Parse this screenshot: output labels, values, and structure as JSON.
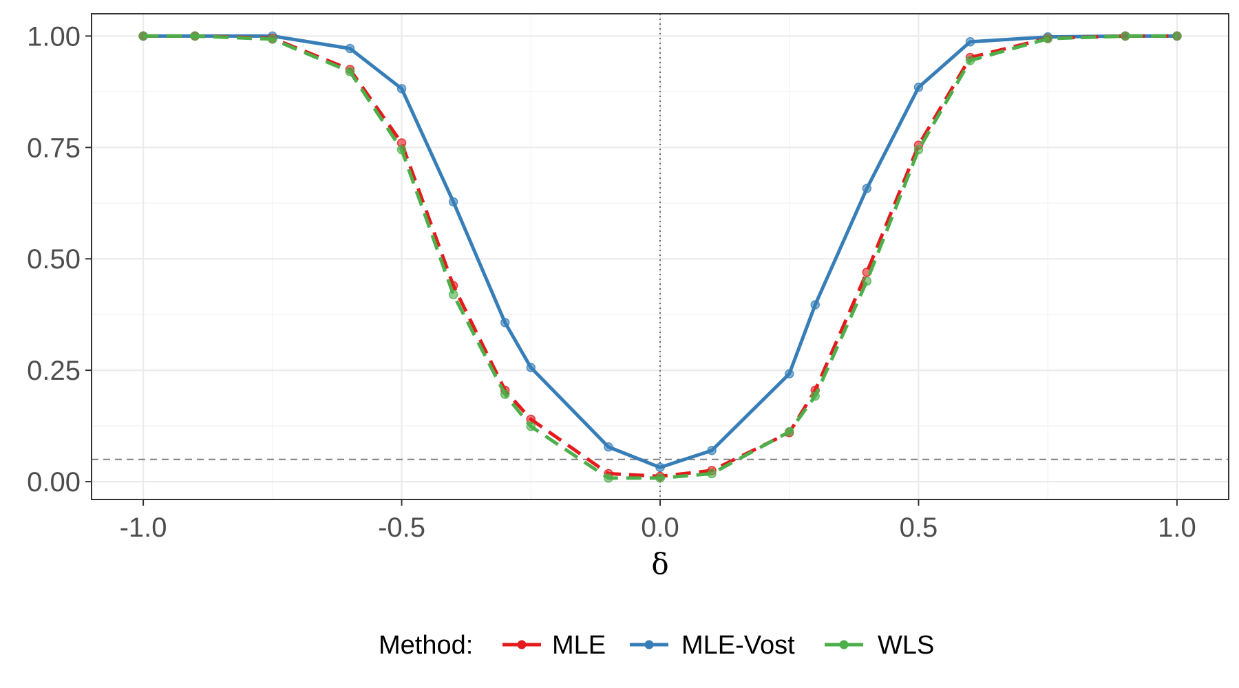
{
  "chart_data": {
    "type": "line",
    "title": "",
    "xlabel": "δ",
    "ylabel": "",
    "xlim": [
      -1.1,
      1.1
    ],
    "ylim": [
      -0.04,
      1.05
    ],
    "x_ticks": [
      -1.0,
      -0.5,
      0.0,
      0.5,
      1.0
    ],
    "x_tick_labels": [
      "-1.0",
      "-0.5",
      "0.0",
      "0.5",
      "1.0"
    ],
    "y_ticks": [
      0.0,
      0.25,
      0.5,
      0.75,
      1.0
    ],
    "y_tick_labels": [
      "0.00",
      "0.25",
      "0.50",
      "0.75",
      "1.00"
    ],
    "grid": true,
    "reference_lines": {
      "horizontal": 0.05,
      "vertical": 0.0
    },
    "legend": {
      "title": "Method:",
      "position": "bottom"
    },
    "x": [
      -1.0,
      -0.9,
      -0.75,
      -0.6,
      -0.5,
      -0.4,
      -0.3,
      -0.25,
      -0.1,
      0.0,
      0.1,
      0.25,
      0.3,
      0.4,
      0.5,
      0.6,
      0.75,
      0.9,
      1.0
    ],
    "series": [
      {
        "name": "MLE",
        "color": "#E41A1C",
        "dash": "dashed",
        "values": [
          1.0,
          1.0,
          0.995,
          0.925,
          0.76,
          0.44,
          0.205,
          0.14,
          0.018,
          0.012,
          0.025,
          0.11,
          0.205,
          0.47,
          0.755,
          0.952,
          0.995,
          1.0,
          1.0
        ]
      },
      {
        "name": "MLE-Vost",
        "color": "#377EB8",
        "dash": "solid",
        "values": [
          1.0,
          1.0,
          1.0,
          0.972,
          0.882,
          0.628,
          0.357,
          0.256,
          0.078,
          0.032,
          0.07,
          0.242,
          0.397,
          0.658,
          0.885,
          0.987,
          0.998,
          1.0,
          1.0
        ]
      },
      {
        "name": "WLS",
        "color": "#4DAF4A",
        "dash": "dashed",
        "values": [
          1.0,
          1.0,
          0.993,
          0.92,
          0.745,
          0.42,
          0.196,
          0.124,
          0.008,
          0.008,
          0.018,
          0.112,
          0.192,
          0.45,
          0.745,
          0.945,
          0.994,
          1.0,
          1.0
        ]
      }
    ]
  }
}
